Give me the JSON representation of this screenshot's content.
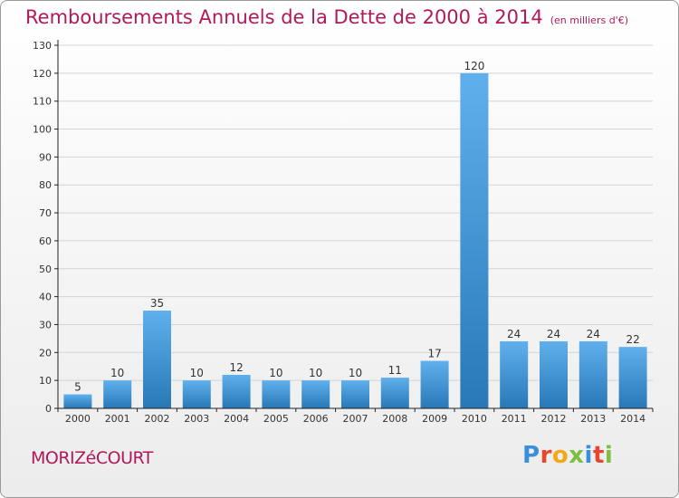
{
  "title": "Remboursements Annuels de la Dette de 2000 à 2014",
  "unit": "(en milliers d'€)",
  "commune": "MORIZéCOURT",
  "logo": {
    "text": "Proxiti",
    "colors": [
      "#3a8fd8",
      "#e8452e",
      "#f2a81d",
      "#7cc043",
      "#3a8fd8",
      "#e8452e",
      "#7cc043"
    ]
  },
  "colors": {
    "bar_light": "#5fb0ec",
    "bar_dark": "#2878b8",
    "title": "#b0195a",
    "grid": "#d4d4d4",
    "axis": "#222222"
  },
  "chart_data": {
    "type": "bar",
    "categories": [
      "2000",
      "2001",
      "2002",
      "2003",
      "2004",
      "2005",
      "2006",
      "2007",
      "2008",
      "2009",
      "2010",
      "2011",
      "2012",
      "2013",
      "2014"
    ],
    "values": [
      5,
      10,
      35,
      10,
      12,
      10,
      10,
      10,
      11,
      17,
      120,
      24,
      24,
      24,
      22
    ],
    "labels": [
      "5",
      "10",
      "35",
      "10",
      "12",
      "10",
      "10",
      "10",
      "11",
      "17",
      "120",
      "24",
      "24",
      "24",
      "22"
    ],
    "yticks": [
      0,
      10,
      20,
      30,
      40,
      50,
      60,
      70,
      80,
      90,
      100,
      110,
      120,
      130
    ],
    "ylim": [
      0,
      130
    ],
    "title": "Remboursements Annuels de la Dette de 2000 à 2014",
    "xlabel": "",
    "ylabel": "",
    "grid": true
  }
}
